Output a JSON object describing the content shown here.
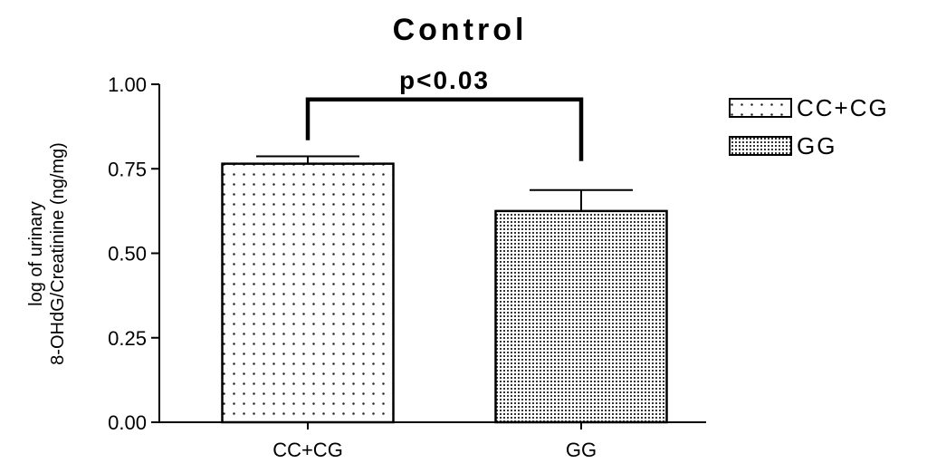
{
  "chart_data": {
    "type": "bar",
    "title": "Control",
    "ylabel_line1": "log of urinary",
    "ylabel_line2": "8-OHdG/Creatinine (ng/mg)",
    "xlabel": "",
    "categories": [
      "CC+CG",
      "GG"
    ],
    "values": [
      0.765,
      0.625
    ],
    "errors": [
      0.022,
      0.062
    ],
    "ylim": [
      0,
      1.0
    ],
    "yticks": [
      "0.00",
      "0.25",
      "0.50",
      "0.75",
      "1.00"
    ],
    "significance": {
      "label": "p<0.03",
      "y": 0.955,
      "from": "CC+CG",
      "to": "GG"
    },
    "legend": {
      "position": "top-right",
      "items": [
        {
          "label": "CC+CG",
          "pattern": "sparse-dots"
        },
        {
          "label": "GG",
          "pattern": "dense-dots"
        }
      ]
    },
    "colors": {
      "bar_fill": "#ffffff",
      "stroke": "#000000"
    }
  }
}
